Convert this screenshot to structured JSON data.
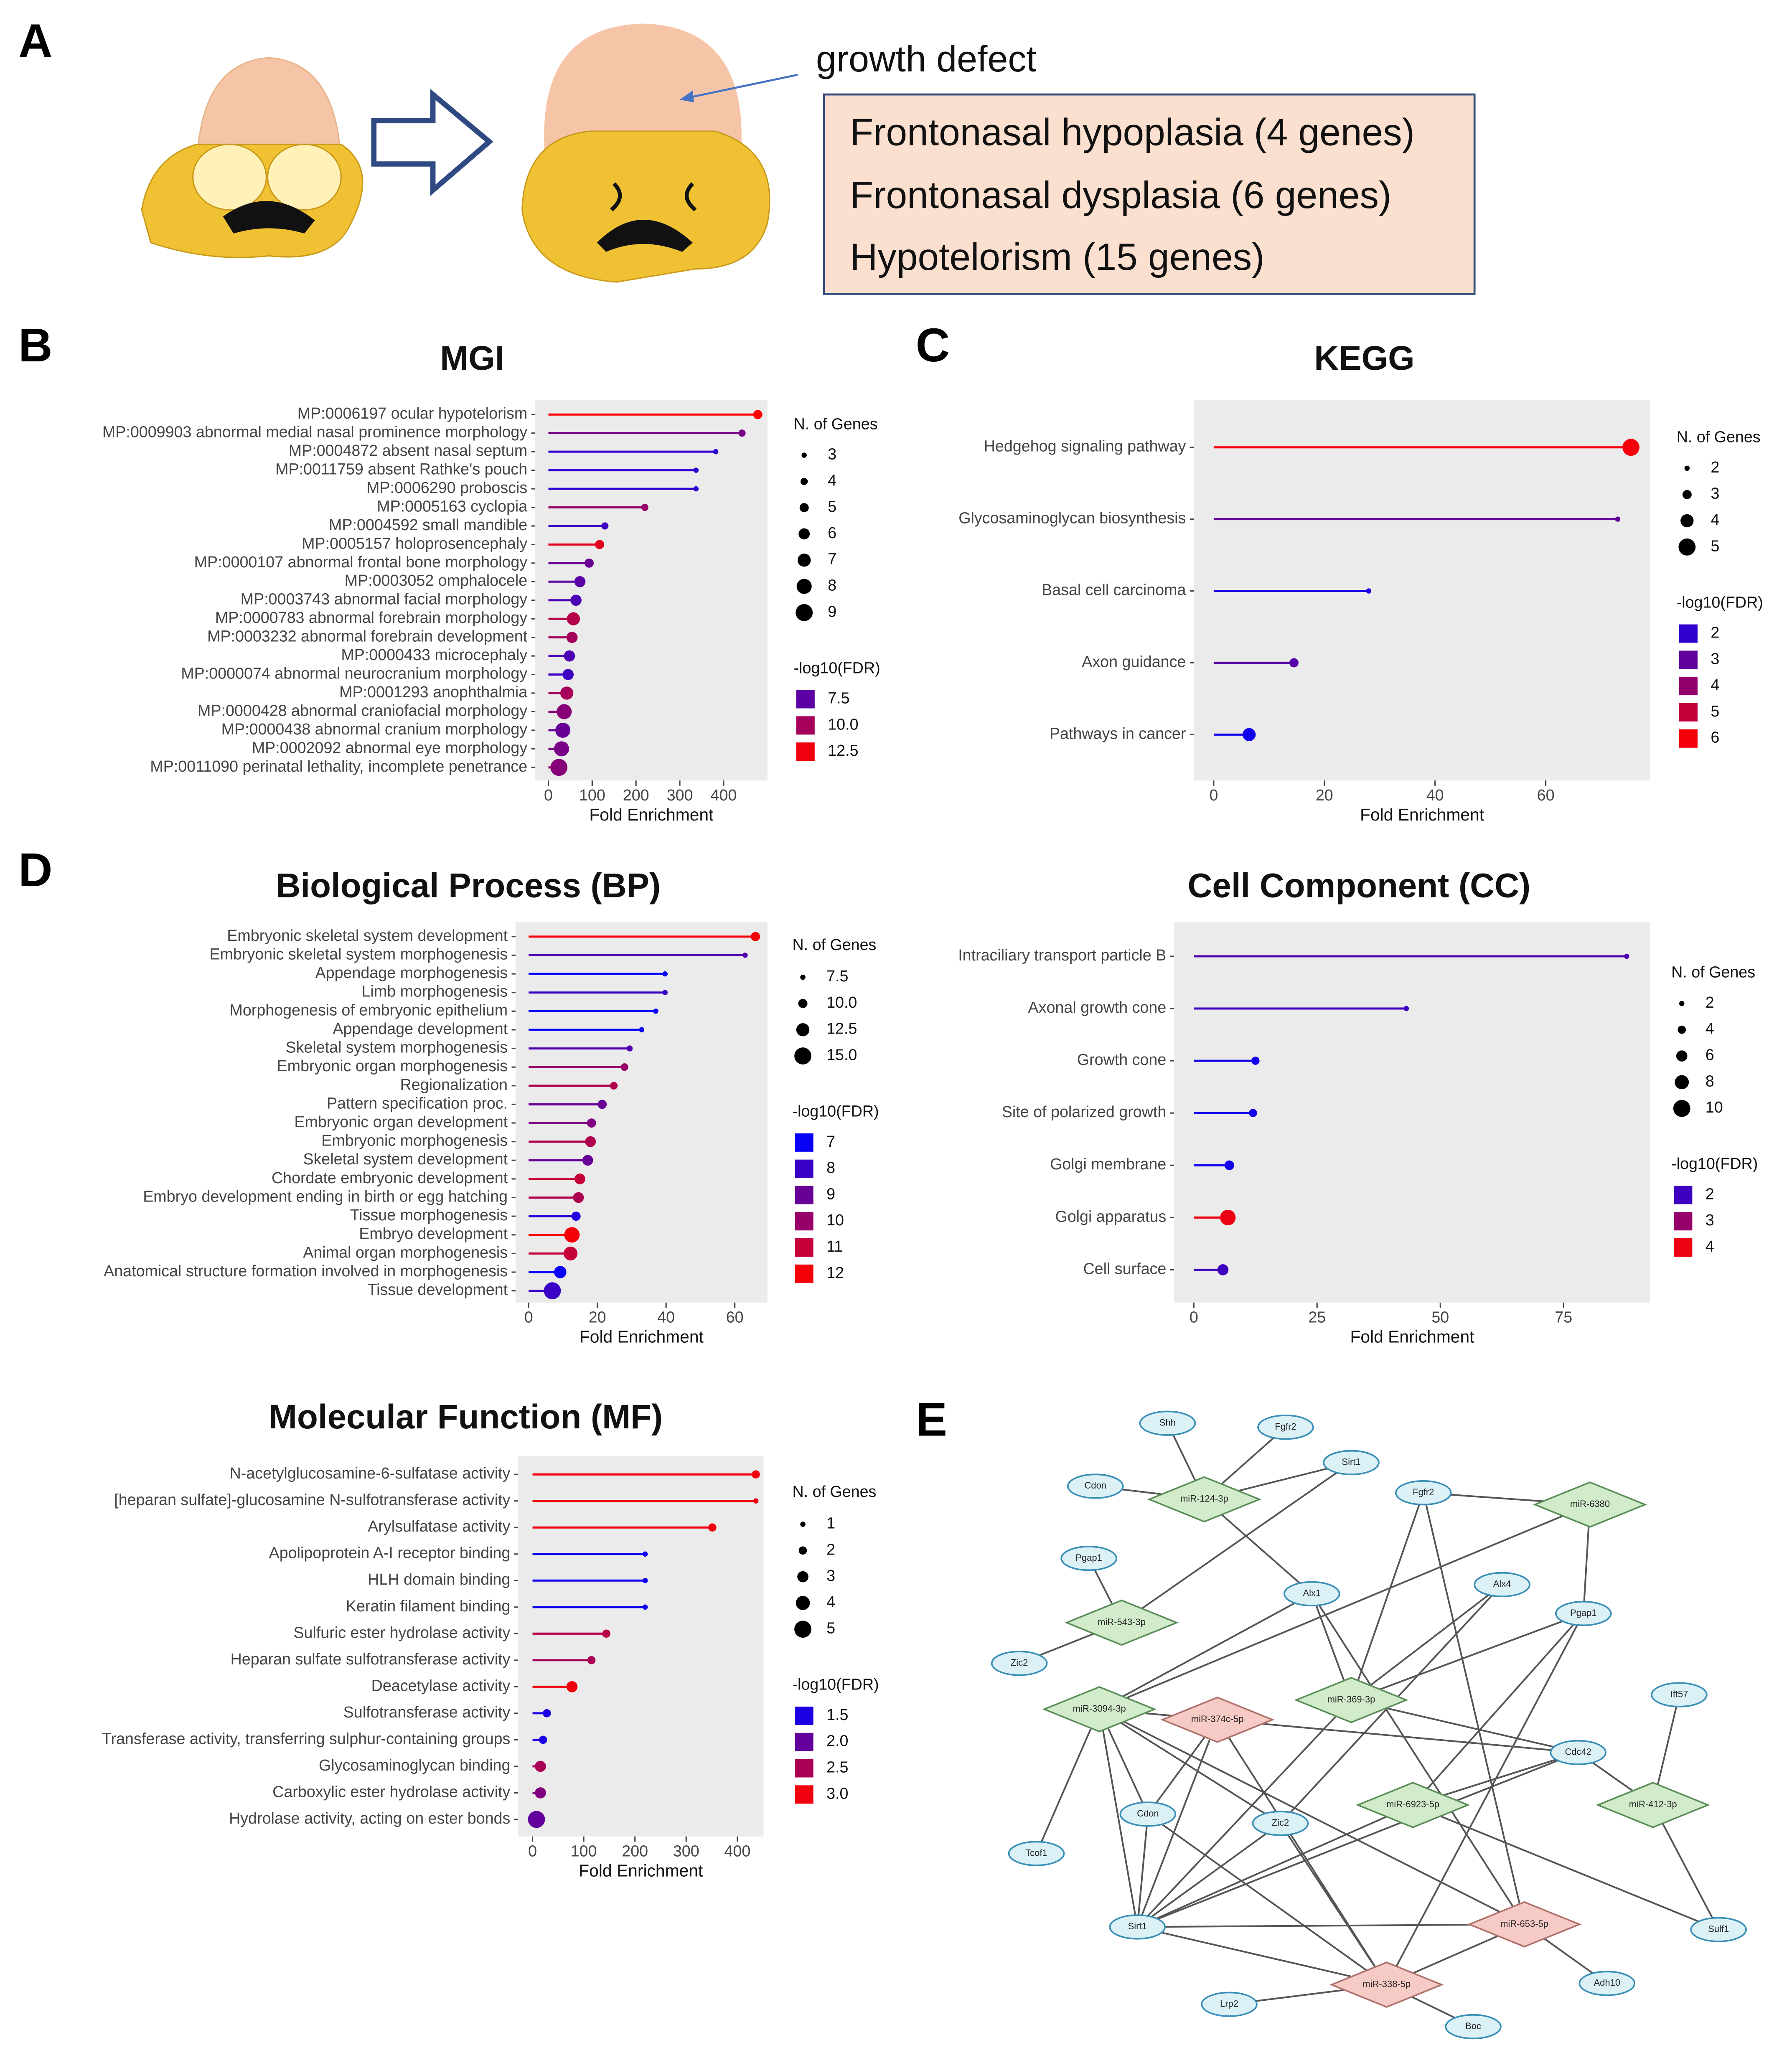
{
  "panel_labels": [
    "A",
    "B",
    "C",
    "D",
    "E"
  ],
  "panel_a": {
    "annotation": "growth defect",
    "box_lines": [
      "Frontonasal  hypoplasia (4 genes)",
      "Frontonasal  dysplasia (6 genes)",
      "Hypotelorism (15 genes)"
    ]
  },
  "chart_data": [
    {
      "type": "lollipop",
      "title": "MGI",
      "xlabel": "Fold Enrichment",
      "categories": [
        "MP:0006197 ocular hypotelorism",
        "MP:0009903 abnormal medial nasal prominence morphology",
        "MP:0004872 absent nasal septum",
        "MP:0011759 absent Rathke's pouch",
        "MP:0006290 proboscis",
        "MP:0005163 cyclopia",
        "MP:0004592 small mandible",
        "MP:0005157 holoprosencephaly",
        "MP:0000107 abnormal frontal bone morphology",
        "MP:0003052 omphalocele",
        "MP:0003743 abnormal facial morphology",
        "MP:0000783 abnormal forebrain morphology",
        "MP:0003232 abnormal forebrain development",
        "MP:0000433 microcephaly",
        "MP:0000074 abnormal neurocranium morphology",
        "MP:0001293 anophthalmia",
        "MP:0000428 abnormal craniofacial morphology",
        "MP:0000438 abnormal cranium morphology",
        "MP:0002092 abnormal eye morphology",
        "MP:0011090 perinatal lethality, incomplete penetrance"
      ],
      "values": [
        478,
        442,
        382,
        337,
        337,
        220,
        129,
        117,
        93,
        72,
        63,
        57,
        54,
        48,
        45,
        42,
        36,
        33,
        30,
        24
      ],
      "sizes": [
        5,
        4,
        3,
        3,
        3,
        4,
        4,
        5,
        5,
        6,
        6,
        7,
        6,
        6,
        6,
        7,
        8,
        8,
        8,
        9
      ],
      "fdr": [
        13,
        8.5,
        6,
        6,
        6,
        9.5,
        6.5,
        12,
        8,
        7.5,
        7,
        10.5,
        10,
        7,
        6.5,
        10,
        9,
        8,
        8.5,
        9
      ],
      "xlim": [
        -30,
        500
      ],
      "xticks": [
        0,
        100,
        200,
        300,
        400
      ],
      "size_legend": {
        "title": "N. of Genes",
        "ticks": [
          3,
          4,
          5,
          6,
          7,
          8,
          9
        ]
      },
      "color_legend": {
        "title": "-log10(FDR)",
        "ticks": [
          7.5,
          {
            "value": 10,
            "label": "10.0"
          },
          12.5
        ],
        "range": [
          4.5,
          13
        ],
        "colors": [
          "#0000ff",
          "#ff0000"
        ]
      }
    },
    {
      "type": "lollipop",
      "title": "KEGG",
      "xlabel": "Fold Enrichment",
      "categories": [
        "Hedgehog signaling pathway",
        "Glycosaminoglycan biosynthesis",
        "Basal cell carcinoma",
        "Axon guidance",
        "Pathways in cancer"
      ],
      "values": [
        75.4,
        73,
        28,
        14.5,
        6.4
      ],
      "sizes": [
        5,
        2,
        2,
        3,
        4
      ],
      "fdr": [
        6,
        3,
        1.5,
        2.8,
        1.3
      ],
      "xlim": [
        -3.6,
        78.9
      ],
      "xticks": [
        0,
        20,
        40,
        60
      ],
      "size_legend": {
        "title": "N. of Genes",
        "ticks": [
          2,
          3,
          4,
          5
        ]
      },
      "color_legend": {
        "title": "-log10(FDR)",
        "ticks": [
          2,
          3,
          4,
          5,
          6
        ],
        "range": [
          1,
          6.2
        ],
        "colors": [
          "#0000ff",
          "#ff0000"
        ]
      }
    },
    {
      "type": "lollipop",
      "title": "Biological Process (BP)",
      "xlabel": "Fold Enrichment",
      "categories": [
        "Embryonic skeletal system development",
        "Embryonic skeletal system morphogenesis",
        "Appendage morphogenesis",
        "Limb morphogenesis",
        "Morphogenesis of embryonic epithelium",
        "Appendage development",
        "Skeletal system morphogenesis",
        "Embryonic organ morphogenesis",
        "Regionalization",
        "Pattern specification proc.",
        "Embryonic organ development",
        "Embryonic morphogenesis",
        "Skeletal system development",
        "Chordate embryonic development",
        "Embryo development ending in birth or egg hatching",
        "Tissue morphogenesis",
        "Embryo development",
        "Animal organ morphogenesis",
        "Anatomical structure formation involved in morphogenesis",
        "Tissue development"
      ],
      "values": [
        66,
        63,
        39.7,
        39.7,
        37,
        32.9,
        29.4,
        27.9,
        24.8,
        21.4,
        18.3,
        18,
        17.2,
        14.9,
        14.5,
        13.8,
        12.6,
        12.2,
        9.2,
        6.9
      ],
      "sizes": [
        10,
        7.5,
        7.5,
        7.5,
        7.5,
        7.5,
        8,
        9,
        9,
        10,
        10,
        11,
        11,
        11,
        11,
        10,
        14,
        13,
        12,
        15
      ],
      "fdr": [
        12,
        8.5,
        7,
        8,
        7,
        7,
        8.5,
        10,
        10.5,
        9,
        9.5,
        10.5,
        9,
        11,
        10.5,
        7.5,
        12,
        11,
        7,
        8
      ],
      "xlim": [
        -3.8,
        69.5
      ],
      "xticks": [
        0,
        20,
        40,
        60
      ],
      "size_legend": {
        "title": "N. of Genes",
        "ticks": [
          7.5,
          {
            "value": 10,
            "label": "10.0"
          },
          12.5,
          {
            "value": 15,
            "label": "15.0"
          }
        ]
      },
      "color_legend": {
        "title": "-log10(FDR)",
        "ticks": [
          7,
          8,
          9,
          10,
          11,
          12
        ],
        "range": [
          6.8,
          12.2
        ],
        "colors": [
          "#0000ff",
          "#ff0000"
        ]
      }
    },
    {
      "type": "lollipop",
      "title": "Cell Component (CC)",
      "xlabel": "Fold Enrichment",
      "categories": [
        "Intraciliary transport particle B",
        "Axonal growth cone",
        "Growth cone",
        "Site of polarized growth",
        "Golgi membrane",
        "Golgi apparatus",
        "Cell surface"
      ],
      "values": [
        87.8,
        43.1,
        12.5,
        12,
        7.2,
        6.9,
        5.9
      ],
      "sizes": [
        2,
        2,
        4,
        4,
        5,
        9,
        6
      ],
      "fdr": [
        2.2,
        2,
        1.5,
        1.5,
        1.5,
        4,
        2
      ],
      "xlim": [
        -4,
        92.6
      ],
      "xticks": [
        0,
        25,
        50,
        75
      ],
      "size_legend": {
        "title": "N. of Genes",
        "ticks": [
          2,
          4,
          6,
          8,
          10
        ]
      },
      "color_legend": {
        "title": "-log10(FDR)",
        "ticks": [
          2,
          3,
          4
        ],
        "range": [
          1.3,
          4.2
        ],
        "colors": [
          "#0000ff",
          "#ff0000"
        ]
      }
    },
    {
      "type": "lollipop",
      "title": "Molecular Function (MF)",
      "xlabel": "Fold Enrichment",
      "categories": [
        "N-acetylglucosamine-6-sulfatase activity",
        "[heparan sulfate]-glucosamine N-sulfotransferase activity",
        "Arylsulfatase activity",
        "Apolipoprotein A-I receptor binding",
        "HLH domain binding",
        "Keratin filament binding",
        "Sulfuric ester hydrolase activity",
        "Heparan sulfate sulfotransferase activity",
        "Deacetylase activity",
        "Sulfotransferase activity",
        "Transferase activity, transferring sulphur-containing groups",
        "Glycosaminoglycan binding",
        "Carboxylic ester hydrolase activity",
        "Hydrolase activity, acting on ester bonds"
      ],
      "values": [
        436,
        436,
        351,
        220,
        220,
        220,
        144,
        115,
        77,
        28,
        20.5,
        15.4,
        15.4,
        7.7
      ],
      "sizes": [
        2,
        1,
        2,
        1,
        1,
        1,
        2,
        2,
        3,
        2,
        2,
        3,
        3,
        5
      ],
      "fdr": [
        3,
        3,
        3,
        1.4,
        1.4,
        1.4,
        2.6,
        2.5,
        3,
        1.5,
        1.5,
        2.5,
        2.2,
        2
      ],
      "xlim": [
        -28,
        451
      ],
      "xticks": [
        0,
        100,
        200,
        300,
        400
      ],
      "size_legend": {
        "title": "N. of Genes",
        "ticks": [
          1,
          2,
          3,
          4,
          5
        ]
      },
      "color_legend": {
        "title": "-log10(FDR)",
        "ticks": [
          1.5,
          {
            "value": 2,
            "label": "2.0"
          },
          2.5,
          {
            "value": 3,
            "label": "3.0"
          }
        ],
        "range": [
          1.3,
          3.1
        ],
        "colors": [
          "#0000ff",
          "#ff0000"
        ]
      }
    }
  ],
  "network": {
    "nodes": [
      {
        "label": "Shh"
      },
      {
        "label": "Fgfr2"
      },
      {
        "label": "Sirt1"
      },
      {
        "label": "Cdon"
      },
      {
        "label": "miR-124-3p"
      },
      {
        "label": "Fgfr2"
      },
      {
        "label": "miR-6380"
      },
      {
        "label": "Pgap1"
      },
      {
        "label": "Alx1"
      },
      {
        "label": "Alx4"
      },
      {
        "label": "Pgap1"
      },
      {
        "label": "miR-543-3p"
      },
      {
        "label": "Zic2"
      },
      {
        "label": "miR-3094-3p"
      },
      {
        "label": "miR-374c-5p"
      },
      {
        "label": "miR-369-3p"
      },
      {
        "label": "Ift57"
      },
      {
        "label": "Cdc42"
      },
      {
        "label": "miR-6923-5p"
      },
      {
        "label": "miR-412-3p"
      },
      {
        "label": "Cdon"
      },
      {
        "label": "Zic2"
      },
      {
        "label": "Tcof1"
      },
      {
        "label": "Sirt1"
      },
      {
        "label": "miR-653-5p"
      },
      {
        "label": "Sulf1"
      },
      {
        "label": "Adh10"
      },
      {
        "label": "Lrp2"
      },
      {
        "label": "miR-338-5p"
      },
      {
        "label": "Boc"
      }
    ]
  }
}
